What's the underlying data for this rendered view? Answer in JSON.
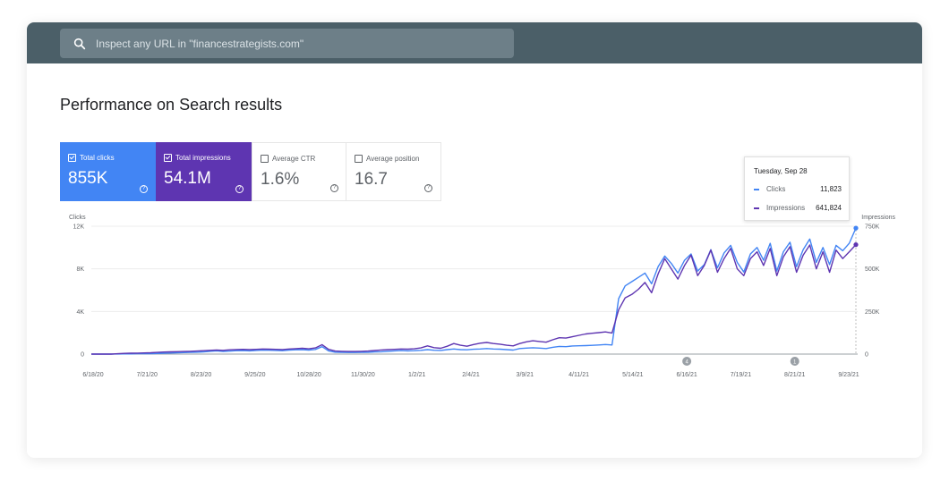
{
  "search": {
    "placeholder": "Inspect any URL in \"financestrategists.com\"",
    "icon": "search-icon"
  },
  "page_title": "Performance on Search results",
  "metrics": [
    {
      "label": "Total clicks",
      "value": "855K",
      "checked": true,
      "color": "#4285f4"
    },
    {
      "label": "Total impressions",
      "value": "54.1M",
      "checked": true,
      "color": "#5e35b1"
    },
    {
      "label": "Average CTR",
      "value": "1.6%",
      "checked": false
    },
    {
      "label": "Average position",
      "value": "16.7",
      "checked": false
    }
  ],
  "tooltip": {
    "date": "Tuesday, Sep 28",
    "rows": [
      {
        "name": "Clicks",
        "value": "11,823",
        "color": "#4285f4"
      },
      {
        "name": "Impressions",
        "value": "641,824",
        "color": "#5e35b1"
      }
    ]
  },
  "chart_data": {
    "type": "line",
    "left_axis_title": "Clicks",
    "right_axis_title": "Impressions",
    "left_ticks": [
      "12K",
      "8K",
      "4K",
      "0"
    ],
    "right_ticks": [
      "750K",
      "500K",
      "250K",
      "0"
    ],
    "left_ylim": [
      0,
      12000
    ],
    "right_ylim": [
      0,
      750000
    ],
    "x_ticks": [
      "6/18/20",
      "7/21/20",
      "8/23/20",
      "9/25/20",
      "10/28/20",
      "11/30/20",
      "1/2/21",
      "2/4/21",
      "3/9/21",
      "4/11/21",
      "5/14/21",
      "6/16/21",
      "7/19/21",
      "8/21/21",
      "9/23/21"
    ],
    "annotations": [
      {
        "label": "4",
        "x_tick_index": 11
      },
      {
        "label": "1",
        "x_tick_index": 13
      }
    ],
    "series": [
      {
        "name": "Clicks",
        "axis": "left",
        "color": "#4285f4",
        "values": [
          0,
          0,
          0,
          0,
          10,
          20,
          20,
          30,
          40,
          40,
          60,
          80,
          100,
          120,
          140,
          160,
          180,
          200,
          260,
          300,
          250,
          280,
          320,
          330,
          300,
          340,
          380,
          360,
          340,
          320,
          380,
          400,
          420,
          380,
          440,
          700,
          300,
          180,
          160,
          150,
          150,
          160,
          170,
          200,
          220,
          260,
          300,
          330,
          300,
          320,
          350,
          420,
          360,
          340,
          420,
          480,
          420,
          400,
          450,
          480,
          520,
          480,
          460,
          420,
          380,
          520,
          560,
          600,
          560,
          520,
          640,
          720,
          700,
          760,
          780,
          800,
          820,
          860,
          900,
          860,
          5200,
          6400,
          6800,
          7200,
          7600,
          6600,
          8200,
          9200,
          8500,
          7600,
          8800,
          9400,
          7800,
          8400,
          9800,
          8100,
          9500,
          10200,
          8600,
          7700,
          9400,
          10000,
          8800,
          10400,
          7800,
          9600,
          10500,
          8200,
          9800,
          10800,
          8600,
          10000,
          8400,
          10200,
          9700,
          10400,
          11823
        ]
      },
      {
        "name": "Impressions",
        "axis": "right",
        "color": "#5e35b1",
        "values": [
          0,
          0,
          0,
          0,
          2000,
          4000,
          5000,
          6000,
          7000,
          8000,
          10000,
          12000,
          13000,
          14000,
          15000,
          16000,
          18000,
          20000,
          22000,
          24000,
          22000,
          25000,
          27000,
          28000,
          26000,
          28000,
          30000,
          29000,
          28000,
          27000,
          30000,
          32000,
          34000,
          31000,
          36000,
          55000,
          28000,
          18000,
          16000,
          15000,
          15000,
          16000,
          18000,
          21000,
          24000,
          26000,
          28000,
          30000,
          29000,
          31000,
          36000,
          48000,
          38000,
          34000,
          46000,
          62000,
          52000,
          46000,
          56000,
          64000,
          68000,
          62000,
          58000,
          52000,
          48000,
          62000,
          72000,
          78000,
          74000,
          70000,
          84000,
          96000,
          94000,
          102000,
          110000,
          118000,
          122000,
          126000,
          130000,
          124000,
          260000,
          330000,
          350000,
          380000,
          420000,
          360000,
          470000,
          560000,
          500000,
          440000,
          520000,
          580000,
          460000,
          520000,
          610000,
          480000,
          560000,
          620000,
          500000,
          460000,
          560000,
          600000,
          520000,
          620000,
          460000,
          570000,
          630000,
          480000,
          580000,
          640000,
          500000,
          600000,
          480000,
          610000,
          560000,
          600000,
          641824
        ]
      }
    ]
  }
}
